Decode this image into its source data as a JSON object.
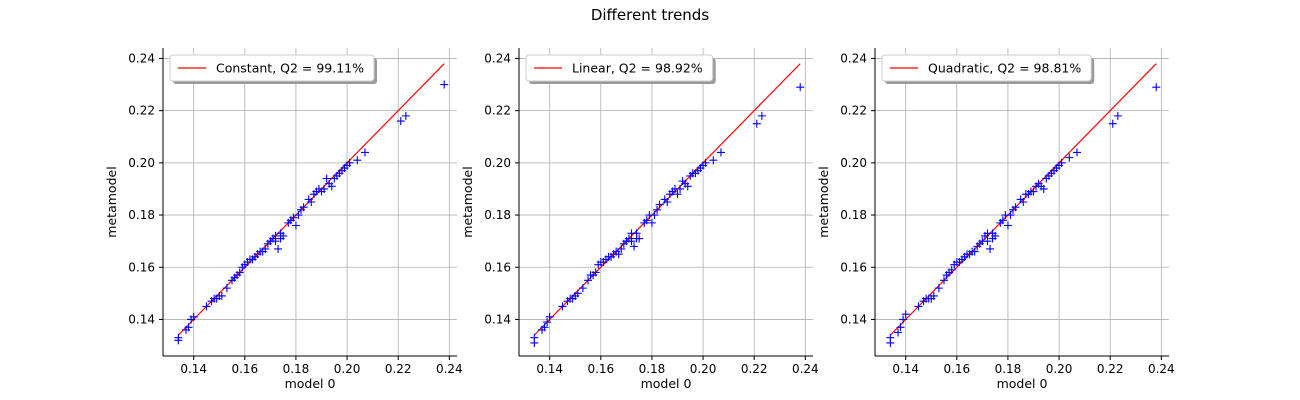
{
  "figure": {
    "title": "Different trends"
  },
  "chart_data": [
    {
      "type": "scatter",
      "title": "",
      "xlabel": "model 0",
      "ylabel": "metamodel",
      "xlim": [
        0.128,
        0.243
      ],
      "ylim": [
        0.126,
        0.244
      ],
      "xticks": [
        0.14,
        0.16,
        0.18,
        0.2,
        0.22,
        0.24
      ],
      "yticks": [
        0.14,
        0.16,
        0.18,
        0.2,
        0.22,
        0.24
      ],
      "grid": true,
      "legend_position": "top-left",
      "reference_line": {
        "label": "Constant, Q2 = 99.11%",
        "color": "#ff0000",
        "x": [
          0.134,
          0.238
        ],
        "y": [
          0.134,
          0.238
        ]
      },
      "series": [
        {
          "color": "#0000ff",
          "marker": "+",
          "x": [
            0.134,
            0.134,
            0.137,
            0.138,
            0.139,
            0.14,
            0.145,
            0.147,
            0.148,
            0.149,
            0.15,
            0.151,
            0.153,
            0.155,
            0.156,
            0.157,
            0.158,
            0.159,
            0.16,
            0.161,
            0.162,
            0.163,
            0.164,
            0.165,
            0.166,
            0.167,
            0.168,
            0.169,
            0.17,
            0.171,
            0.172,
            0.172,
            0.173,
            0.174,
            0.174,
            0.175,
            0.177,
            0.178,
            0.179,
            0.18,
            0.181,
            0.182,
            0.183,
            0.185,
            0.186,
            0.187,
            0.188,
            0.189,
            0.19,
            0.191,
            0.192,
            0.193,
            0.194,
            0.195,
            0.196,
            0.197,
            0.198,
            0.199,
            0.2,
            0.201,
            0.204,
            0.207,
            0.221,
            0.223,
            0.238
          ],
          "y": [
            0.133,
            0.132,
            0.136,
            0.137,
            0.14,
            0.141,
            0.145,
            0.147,
            0.148,
            0.148,
            0.149,
            0.149,
            0.152,
            0.155,
            0.156,
            0.157,
            0.158,
            0.16,
            0.161,
            0.162,
            0.163,
            0.163,
            0.164,
            0.165,
            0.166,
            0.166,
            0.167,
            0.169,
            0.17,
            0.171,
            0.172,
            0.17,
            0.167,
            0.173,
            0.171,
            0.172,
            0.177,
            0.178,
            0.179,
            0.176,
            0.18,
            0.182,
            0.183,
            0.186,
            0.185,
            0.188,
            0.189,
            0.19,
            0.189,
            0.19,
            0.194,
            0.192,
            0.191,
            0.194,
            0.195,
            0.196,
            0.197,
            0.198,
            0.199,
            0.2,
            0.201,
            0.204,
            0.216,
            0.218,
            0.23
          ]
        }
      ]
    },
    {
      "type": "scatter",
      "title": "",
      "xlabel": "model 0",
      "ylabel": "metamodel",
      "xlim": [
        0.128,
        0.243
      ],
      "ylim": [
        0.126,
        0.244
      ],
      "xticks": [
        0.14,
        0.16,
        0.18,
        0.2,
        0.22,
        0.24
      ],
      "yticks": [
        0.14,
        0.16,
        0.18,
        0.2,
        0.22,
        0.24
      ],
      "grid": true,
      "legend_position": "top-left",
      "reference_line": {
        "label": "Linear, Q2 = 98.92%",
        "color": "#ff0000",
        "x": [
          0.134,
          0.238
        ],
        "y": [
          0.134,
          0.238
        ]
      },
      "series": [
        {
          "color": "#0000ff",
          "marker": "+",
          "x": [
            0.134,
            0.134,
            0.137,
            0.138,
            0.139,
            0.14,
            0.145,
            0.147,
            0.148,
            0.149,
            0.15,
            0.151,
            0.153,
            0.155,
            0.156,
            0.157,
            0.158,
            0.159,
            0.16,
            0.161,
            0.162,
            0.163,
            0.164,
            0.165,
            0.166,
            0.167,
            0.168,
            0.169,
            0.17,
            0.171,
            0.172,
            0.172,
            0.173,
            0.174,
            0.174,
            0.175,
            0.177,
            0.178,
            0.179,
            0.18,
            0.181,
            0.182,
            0.183,
            0.185,
            0.186,
            0.187,
            0.188,
            0.189,
            0.19,
            0.191,
            0.192,
            0.193,
            0.194,
            0.195,
            0.196,
            0.197,
            0.198,
            0.199,
            0.2,
            0.201,
            0.204,
            0.207,
            0.221,
            0.223,
            0.238
          ],
          "y": [
            0.133,
            0.131,
            0.136,
            0.137,
            0.139,
            0.141,
            0.145,
            0.147,
            0.148,
            0.148,
            0.149,
            0.15,
            0.152,
            0.155,
            0.157,
            0.157,
            0.158,
            0.161,
            0.162,
            0.162,
            0.163,
            0.164,
            0.164,
            0.165,
            0.166,
            0.165,
            0.167,
            0.169,
            0.17,
            0.171,
            0.173,
            0.17,
            0.168,
            0.173,
            0.171,
            0.171,
            0.177,
            0.178,
            0.18,
            0.177,
            0.18,
            0.182,
            0.184,
            0.186,
            0.185,
            0.188,
            0.189,
            0.19,
            0.188,
            0.19,
            0.193,
            0.192,
            0.191,
            0.195,
            0.196,
            0.196,
            0.197,
            0.198,
            0.199,
            0.2,
            0.201,
            0.204,
            0.215,
            0.218,
            0.229
          ]
        }
      ]
    },
    {
      "type": "scatter",
      "title": "",
      "xlabel": "model 0",
      "ylabel": "metamodel",
      "xlim": [
        0.128,
        0.243
      ],
      "ylim": [
        0.126,
        0.244
      ],
      "xticks": [
        0.14,
        0.16,
        0.18,
        0.2,
        0.22,
        0.24
      ],
      "yticks": [
        0.14,
        0.16,
        0.18,
        0.2,
        0.22,
        0.24
      ],
      "grid": true,
      "legend_position": "top-left",
      "reference_line": {
        "label": "Quadratic, Q2 = 98.81%",
        "color": "#ff0000",
        "x": [
          0.134,
          0.238
        ],
        "y": [
          0.134,
          0.238
        ]
      },
      "series": [
        {
          "color": "#0000ff",
          "marker": "+",
          "x": [
            0.134,
            0.134,
            0.137,
            0.138,
            0.139,
            0.14,
            0.145,
            0.147,
            0.148,
            0.149,
            0.15,
            0.151,
            0.153,
            0.155,
            0.156,
            0.157,
            0.158,
            0.159,
            0.16,
            0.161,
            0.162,
            0.163,
            0.164,
            0.165,
            0.166,
            0.167,
            0.168,
            0.169,
            0.17,
            0.171,
            0.172,
            0.172,
            0.173,
            0.174,
            0.174,
            0.175,
            0.177,
            0.178,
            0.179,
            0.18,
            0.181,
            0.182,
            0.183,
            0.185,
            0.186,
            0.187,
            0.188,
            0.189,
            0.19,
            0.191,
            0.192,
            0.193,
            0.194,
            0.195,
            0.196,
            0.197,
            0.198,
            0.199,
            0.2,
            0.201,
            0.204,
            0.207,
            0.221,
            0.223,
            0.238
          ],
          "y": [
            0.133,
            0.131,
            0.135,
            0.137,
            0.14,
            0.142,
            0.145,
            0.147,
            0.148,
            0.148,
            0.148,
            0.149,
            0.152,
            0.155,
            0.157,
            0.158,
            0.159,
            0.161,
            0.162,
            0.162,
            0.163,
            0.164,
            0.165,
            0.165,
            0.166,
            0.166,
            0.168,
            0.169,
            0.17,
            0.172,
            0.173,
            0.17,
            0.167,
            0.173,
            0.171,
            0.172,
            0.177,
            0.178,
            0.18,
            0.176,
            0.18,
            0.182,
            0.183,
            0.186,
            0.185,
            0.188,
            0.188,
            0.189,
            0.189,
            0.191,
            0.192,
            0.191,
            0.19,
            0.194,
            0.195,
            0.196,
            0.197,
            0.198,
            0.199,
            0.2,
            0.202,
            0.204,
            0.215,
            0.218,
            0.229
          ]
        }
      ]
    }
  ]
}
